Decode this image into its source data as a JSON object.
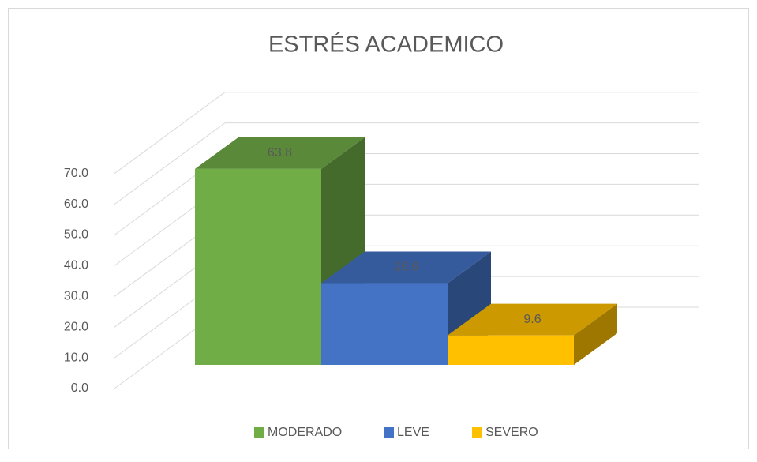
{
  "chart_data": {
    "type": "bar3d",
    "title": "ESTRÉS ACADEMICO",
    "categories": [
      "MODERADO",
      "LEVE",
      "SEVERO"
    ],
    "series": [
      {
        "name": "MODERADO",
        "color": "#70ad47",
        "values": [
          63.8,
          null,
          null
        ]
      },
      {
        "name": "LEVE",
        "color": "#4472c4",
        "values": [
          null,
          26.6,
          null
        ]
      },
      {
        "name": "SEVERO",
        "color": "#ffc000",
        "values": [
          null,
          null,
          9.6
        ]
      }
    ],
    "ylim": [
      0,
      70
    ],
    "yticks": [
      {
        "value": 0,
        "label": "0.0"
      },
      {
        "value": 10,
        "label": "10.0"
      },
      {
        "value": 20,
        "label": "20.0"
      },
      {
        "value": 30,
        "label": "30.0"
      },
      {
        "value": 40,
        "label": "40.0"
      },
      {
        "value": 50,
        "label": "50.0"
      },
      {
        "value": 60,
        "label": "60.0"
      },
      {
        "value": 70,
        "label": "70.0"
      }
    ],
    "grid": true,
    "legend": "bottom"
  }
}
